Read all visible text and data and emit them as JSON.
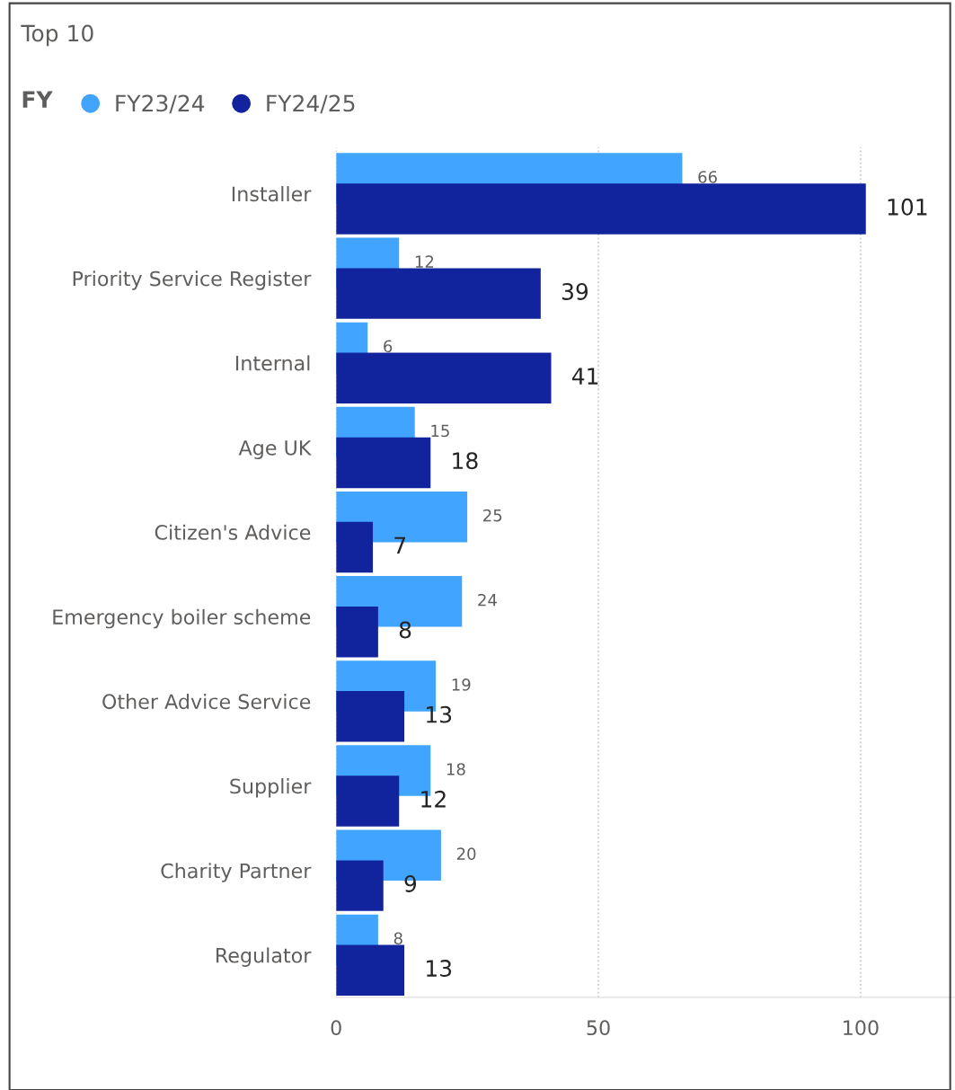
{
  "chart_data": {
    "type": "bar",
    "orientation": "horizontal",
    "title": "Top 10",
    "legend_title": "FY",
    "legend": "top left",
    "categories": [
      "Installer",
      "Priority Service Register",
      "Internal",
      "Age UK",
      "Citizen's Advice",
      "Emergency boiler scheme",
      "Other Advice Service",
      "Supplier",
      "Charity Partner",
      "Regulator"
    ],
    "series": [
      {
        "name": "FY23/24",
        "color": "#41a4ff",
        "values": [
          66,
          12,
          6,
          15,
          25,
          24,
          19,
          18,
          20,
          8
        ]
      },
      {
        "name": "FY24/25",
        "color": "#12239e",
        "values": [
          101,
          39,
          41,
          18,
          7,
          8,
          13,
          12,
          9,
          13
        ]
      }
    ],
    "xlim": [
      0,
      118
    ],
    "xticks": [
      0,
      50,
      100
    ],
    "grid": "x",
    "data_labels": true
  }
}
